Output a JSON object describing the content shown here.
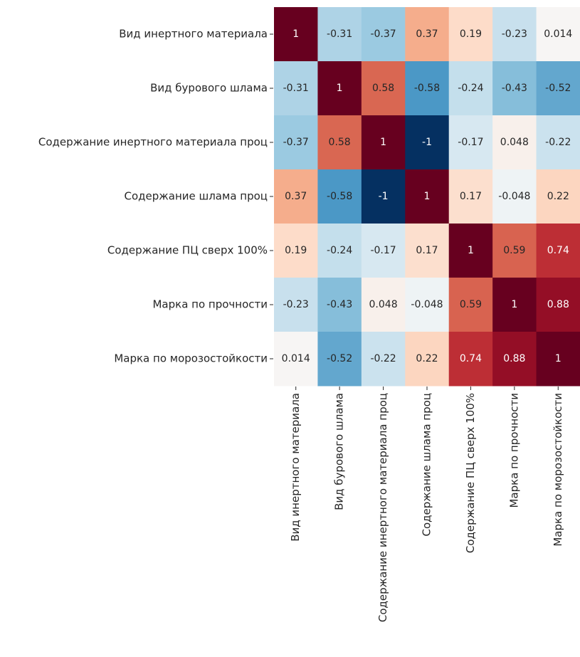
{
  "chart_data": {
    "type": "heatmap",
    "xcategories": [
      "Вид инертного материала",
      "Вид бурового шлама",
      "Содержание инертного материала проц",
      "Содержание шлама проц",
      "Содержание ПЦ сверх 100%",
      "Марка по прочности",
      "Марка по морозостойкости"
    ],
    "ycategories": [
      "Вид инертного материала",
      "Вид бурового шлама",
      "Содержание инертного материала проц",
      "Содержание шлама проц",
      "Содержание ПЦ сверх 100%",
      "Марка по прочности",
      "Марка по морозостойкости"
    ],
    "values": [
      [
        1,
        -0.31,
        -0.37,
        0.37,
        0.19,
        -0.23,
        0.014
      ],
      [
        -0.31,
        1,
        0.58,
        -0.58,
        -0.24,
        -0.43,
        -0.52
      ],
      [
        -0.37,
        0.58,
        1,
        -1,
        -0.17,
        0.048,
        -0.22
      ],
      [
        0.37,
        -0.58,
        -1,
        1,
        0.17,
        -0.048,
        0.22
      ],
      [
        0.19,
        -0.24,
        -0.17,
        0.17,
        1,
        0.59,
        0.74
      ],
      [
        -0.23,
        -0.43,
        0.048,
        -0.048,
        0.59,
        1,
        0.88
      ],
      [
        0.014,
        -0.52,
        -0.22,
        0.22,
        0.74,
        0.88,
        1
      ]
    ],
    "zlim": [
      -1,
      1
    ],
    "colorscale": [
      "#053061",
      "#2166ac",
      "#4393c3",
      "#92c5de",
      "#d1e5f0",
      "#f7f7f7",
      "#fddbc7",
      "#f4a582",
      "#d6604d",
      "#b2182b",
      "#67001f"
    ]
  }
}
